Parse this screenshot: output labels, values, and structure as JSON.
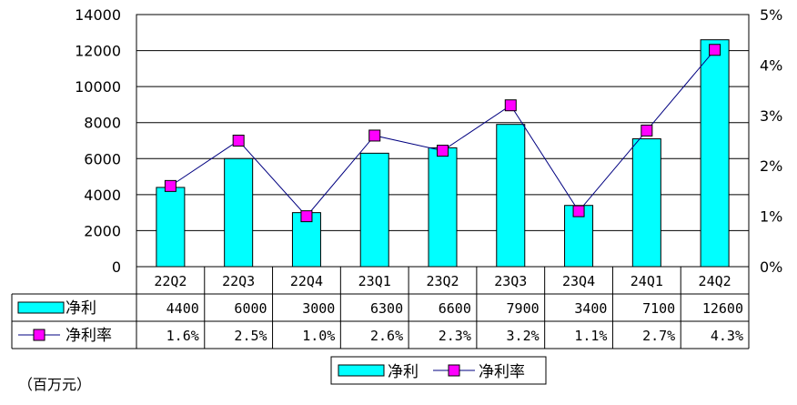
{
  "chart_data": {
    "type": "bar",
    "categories": [
      "22Q2",
      "22Q3",
      "22Q4",
      "23Q1",
      "23Q2",
      "23Q3",
      "23Q4",
      "24Q1",
      "24Q2"
    ],
    "series": [
      {
        "name": "净利",
        "kind": "bar",
        "axis": "left",
        "color": "#00ffff",
        "values": [
          4400,
          6000,
          3000,
          6300,
          6600,
          7900,
          3400,
          7100,
          12600
        ],
        "table_values": [
          "4400",
          "6000",
          "3000",
          "6300",
          "6600",
          "7900",
          "3400",
          "7100",
          "12600"
        ]
      },
      {
        "name": "净利率",
        "kind": "line",
        "axis": "right",
        "color": "#ff00ff",
        "line_color": "#000080",
        "values": [
          1.6,
          2.5,
          1.0,
          2.6,
          2.3,
          3.2,
          1.1,
          2.7,
          4.3
        ],
        "table_values": [
          "1.6%",
          "2.5%",
          "1.0%",
          "2.6%",
          "2.3%",
          "3.2%",
          "1.1%",
          "2.7%",
          "4.3%"
        ]
      }
    ],
    "ylim": [
      0,
      14000
    ],
    "yticks": [
      "0",
      "2000",
      "4000",
      "6000",
      "8000",
      "10000",
      "12000",
      "14000"
    ],
    "y2lim": [
      0,
      5
    ],
    "y2ticks": [
      "0%",
      "1%",
      "2%",
      "3%",
      "4%",
      "5%"
    ],
    "grid": true,
    "legend_position": "bottom",
    "unit_note": "（百万元）"
  }
}
